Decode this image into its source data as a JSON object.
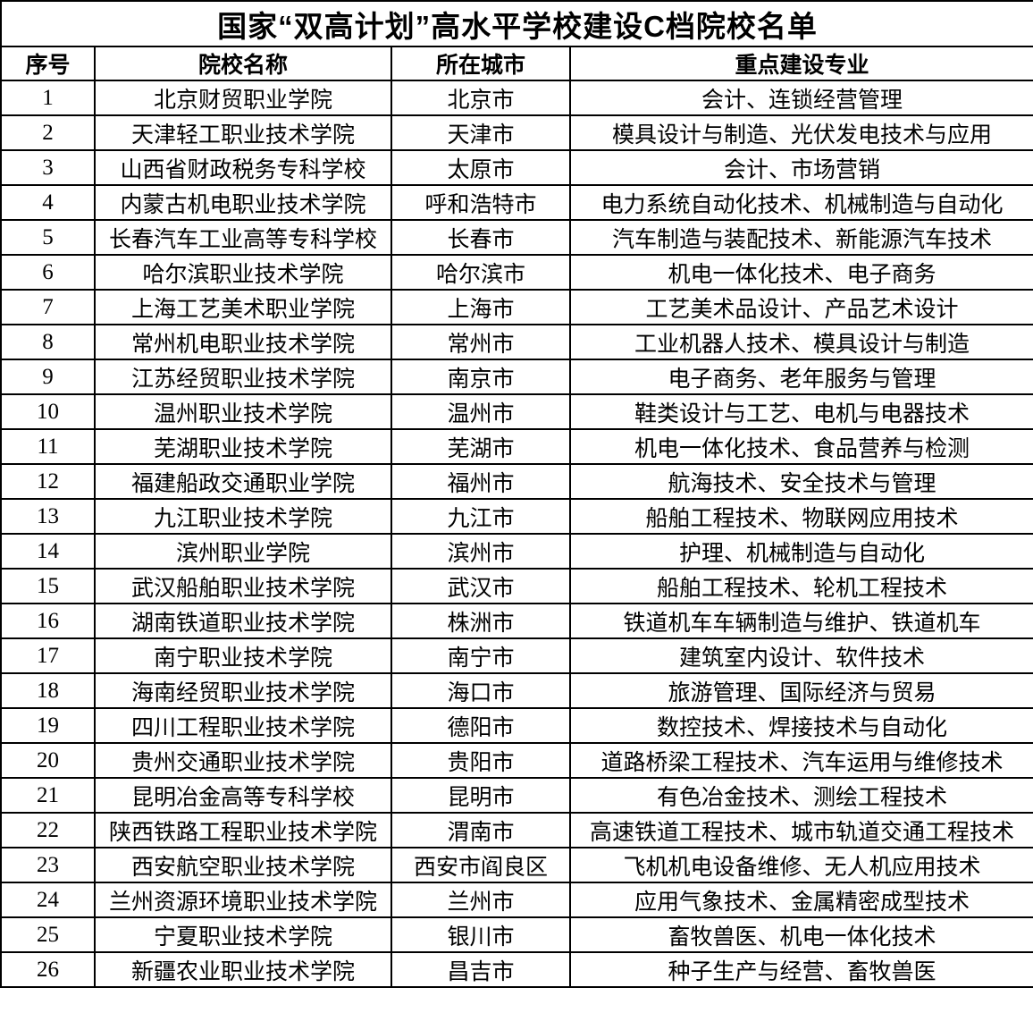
{
  "page_title": "国家“双高计划”高水平学校建设C档院校名单",
  "table": {
    "columns": [
      "序号",
      "院校名称",
      "所在城市",
      "重点建设专业"
    ],
    "rows": [
      {
        "no": "1",
        "name": "北京财贸职业学院",
        "city": "北京市",
        "majors": "会计、连锁经营管理"
      },
      {
        "no": "2",
        "name": "天津轻工职业技术学院",
        "city": "天津市",
        "majors": "模具设计与制造、光伏发电技术与应用"
      },
      {
        "no": "3",
        "name": "山西省财政税务专科学校",
        "city": "太原市",
        "majors": "会计、市场营销"
      },
      {
        "no": "4",
        "name": "内蒙古机电职业技术学院",
        "city": "呼和浩特市",
        "majors": "电力系统自动化技术、机械制造与自动化"
      },
      {
        "no": "5",
        "name": "长春汽车工业高等专科学校",
        "city": "长春市",
        "majors": "汽车制造与装配技术、新能源汽车技术"
      },
      {
        "no": "6",
        "name": "哈尔滨职业技术学院",
        "city": "哈尔滨市",
        "majors": "机电一体化技术、电子商务"
      },
      {
        "no": "7",
        "name": "上海工艺美术职业学院",
        "city": "上海市",
        "majors": "工艺美术品设计、产品艺术设计"
      },
      {
        "no": "8",
        "name": "常州机电职业技术学院",
        "city": "常州市",
        "majors": "工业机器人技术、模具设计与制造"
      },
      {
        "no": "9",
        "name": "江苏经贸职业技术学院",
        "city": "南京市",
        "majors": "电子商务、老年服务与管理"
      },
      {
        "no": "10",
        "name": "温州职业技术学院",
        "city": "温州市",
        "majors": "鞋类设计与工艺、电机与电器技术"
      },
      {
        "no": "11",
        "name": "芜湖职业技术学院",
        "city": "芜湖市",
        "majors": "机电一体化技术、食品营养与检测"
      },
      {
        "no": "12",
        "name": "福建船政交通职业学院",
        "city": "福州市",
        "majors": "航海技术、安全技术与管理"
      },
      {
        "no": "13",
        "name": "九江职业技术学院",
        "city": "九江市",
        "majors": "船舶工程技术、物联网应用技术"
      },
      {
        "no": "14",
        "name": "滨州职业学院",
        "city": "滨州市",
        "majors": "护理、机械制造与自动化"
      },
      {
        "no": "15",
        "name": "武汉船舶职业技术学院",
        "city": "武汉市",
        "majors": "船舶工程技术、轮机工程技术"
      },
      {
        "no": "16",
        "name": "湖南铁道职业技术学院",
        "city": "株洲市",
        "majors": "铁道机车车辆制造与维护、铁道机车"
      },
      {
        "no": "17",
        "name": "南宁职业技术学院",
        "city": "南宁市",
        "majors": "建筑室内设计、软件技术"
      },
      {
        "no": "18",
        "name": "海南经贸职业技术学院",
        "city": "海口市",
        "majors": "旅游管理、国际经济与贸易"
      },
      {
        "no": "19",
        "name": "四川工程职业技术学院",
        "city": "德阳市",
        "majors": "数控技术、焊接技术与自动化"
      },
      {
        "no": "20",
        "name": "贵州交通职业技术学院",
        "city": "贵阳市",
        "majors": "道路桥梁工程技术、汽车运用与维修技术"
      },
      {
        "no": "21",
        "name": "昆明冶金高等专科学校",
        "city": "昆明市",
        "majors": "有色冶金技术、测绘工程技术"
      },
      {
        "no": "22",
        "name": "陕西铁路工程职业技术学院",
        "city": "渭南市",
        "majors": "高速铁道工程技术、城市轨道交通工程技术"
      },
      {
        "no": "23",
        "name": "西安航空职业技术学院",
        "city": "西安市阎良区",
        "majors": "飞机机电设备维修、无人机应用技术"
      },
      {
        "no": "24",
        "name": "兰州资源环境职业技术学院",
        "city": "兰州市",
        "majors": "应用气象技术、金属精密成型技术"
      },
      {
        "no": "25",
        "name": "宁夏职业技术学院",
        "city": "银川市",
        "majors": "畜牧兽医、机电一体化技术"
      },
      {
        "no": "26",
        "name": "新疆农业职业技术学院",
        "city": "昌吉市",
        "majors": "种子生产与经营、畜牧兽医"
      }
    ]
  },
  "colors": {
    "border": "#000000",
    "text": "#000000",
    "background": "#ffffff"
  }
}
